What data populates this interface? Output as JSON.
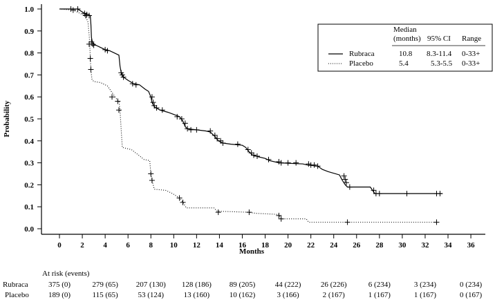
{
  "chart_data": {
    "type": "line",
    "title": "",
    "xlabel": "Months",
    "ylabel": "Probability",
    "xlim": [
      -1,
      37.5
    ],
    "ylim": [
      0,
      1.0
    ],
    "x_ticks": [
      0,
      2,
      4,
      6,
      8,
      10,
      12,
      14,
      16,
      18,
      20,
      22,
      24,
      26,
      28,
      30,
      32,
      34,
      36
    ],
    "y_ticks": [
      "0.0",
      "0.1",
      "0.2",
      "0.3",
      "0.4",
      "0.5",
      "0.6",
      "0.7",
      "0.8",
      "0.9",
      "1.0"
    ],
    "grid": false,
    "legend_position": "top-right",
    "legend": {
      "headers": [
        "Median (months)",
        "95% CI",
        "Range"
      ],
      "header_line1": [
        "Median",
        "",
        ""
      ],
      "header_line2": [
        "(months)",
        "95% CI",
        "Range"
      ],
      "rows": [
        {
          "name": "Rubraca",
          "style": "solid",
          "median": "10.8",
          "ci": "8.3-11.4",
          "range": "0-33+"
        },
        {
          "name": "Placebo",
          "style": "dotted",
          "median": "5.4",
          "ci": "5.3-5.5",
          "range": "0-33+"
        }
      ]
    },
    "series": [
      {
        "name": "Rubraca",
        "style": "solid",
        "steps": [
          [
            0,
            1.0
          ],
          [
            1.6,
            1.0
          ],
          [
            1.9,
            0.99
          ],
          [
            2.2,
            0.98
          ],
          [
            2.5,
            0.975
          ],
          [
            2.7,
            0.97
          ],
          [
            2.75,
            0.93
          ],
          [
            2.8,
            0.87
          ],
          [
            2.9,
            0.845
          ],
          [
            3.2,
            0.835
          ],
          [
            3.6,
            0.825
          ],
          [
            4.0,
            0.815
          ],
          [
            4.4,
            0.81
          ],
          [
            4.8,
            0.8
          ],
          [
            5.2,
            0.79
          ],
          [
            5.3,
            0.74
          ],
          [
            5.4,
            0.71
          ],
          [
            5.6,
            0.69
          ],
          [
            6.0,
            0.675
          ],
          [
            6.5,
            0.66
          ],
          [
            7.0,
            0.655
          ],
          [
            7.5,
            0.635
          ],
          [
            7.8,
            0.625
          ],
          [
            8.0,
            0.6
          ],
          [
            8.1,
            0.575
          ],
          [
            8.3,
            0.555
          ],
          [
            8.8,
            0.54
          ],
          [
            9.5,
            0.53
          ],
          [
            10.0,
            0.52
          ],
          [
            10.5,
            0.51
          ],
          [
            10.8,
            0.49
          ],
          [
            11.0,
            0.465
          ],
          [
            11.2,
            0.455
          ],
          [
            12.0,
            0.45
          ],
          [
            12.8,
            0.445
          ],
          [
            13.2,
            0.44
          ],
          [
            13.6,
            0.42
          ],
          [
            13.9,
            0.4
          ],
          [
            14.3,
            0.39
          ],
          [
            15.0,
            0.385
          ],
          [
            16.0,
            0.38
          ],
          [
            16.3,
            0.37
          ],
          [
            16.6,
            0.35
          ],
          [
            16.9,
            0.335
          ],
          [
            17.2,
            0.33
          ],
          [
            18.0,
            0.32
          ],
          [
            18.4,
            0.31
          ],
          [
            19.2,
            0.3
          ],
          [
            21.3,
            0.295
          ],
          [
            21.7,
            0.29
          ],
          [
            22.6,
            0.285
          ],
          [
            23.0,
            0.27
          ],
          [
            23.5,
            0.26
          ],
          [
            24.5,
            0.245
          ],
          [
            24.7,
            0.225
          ],
          [
            25.0,
            0.2
          ],
          [
            25.2,
            0.19
          ],
          [
            27.2,
            0.19
          ],
          [
            27.4,
            0.175
          ],
          [
            27.6,
            0.16
          ],
          [
            33.5,
            0.16
          ]
        ],
        "censor_times": [
          [
            1.0,
            1.0
          ],
          [
            1.6,
            1.0
          ],
          [
            2.2,
            0.98
          ],
          [
            2.4,
            0.975
          ],
          [
            2.6,
            0.97
          ],
          [
            2.8,
            0.85
          ],
          [
            2.9,
            0.84
          ],
          [
            3.0,
            0.835
          ],
          [
            4.0,
            0.815
          ],
          [
            4.2,
            0.81
          ],
          [
            5.4,
            0.71
          ],
          [
            5.5,
            0.7
          ],
          [
            5.6,
            0.69
          ],
          [
            6.4,
            0.66
          ],
          [
            6.7,
            0.655
          ],
          [
            8.1,
            0.6
          ],
          [
            8.2,
            0.575
          ],
          [
            8.3,
            0.56
          ],
          [
            8.5,
            0.55
          ],
          [
            9.0,
            0.54
          ],
          [
            10.3,
            0.51
          ],
          [
            10.7,
            0.5
          ],
          [
            11.0,
            0.48
          ],
          [
            11.2,
            0.455
          ],
          [
            11.5,
            0.45
          ],
          [
            12.0,
            0.45
          ],
          [
            13.2,
            0.445
          ],
          [
            13.6,
            0.425
          ],
          [
            13.8,
            0.41
          ],
          [
            14.1,
            0.4
          ],
          [
            14.3,
            0.39
          ],
          [
            15.6,
            0.385
          ],
          [
            16.5,
            0.36
          ],
          [
            16.8,
            0.345
          ],
          [
            17.0,
            0.335
          ],
          [
            17.3,
            0.33
          ],
          [
            18.3,
            0.315
          ],
          [
            19.2,
            0.305
          ],
          [
            19.4,
            0.3
          ],
          [
            20.0,
            0.3
          ],
          [
            20.7,
            0.3
          ],
          [
            21.8,
            0.295
          ],
          [
            22.0,
            0.29
          ],
          [
            22.3,
            0.29
          ],
          [
            22.6,
            0.285
          ],
          [
            24.9,
            0.24
          ],
          [
            25.0,
            0.225
          ],
          [
            25.1,
            0.21
          ],
          [
            25.4,
            0.19
          ],
          [
            27.5,
            0.175
          ],
          [
            27.7,
            0.16
          ],
          [
            28.0,
            0.16
          ],
          [
            30.4,
            0.16
          ],
          [
            33.0,
            0.16
          ],
          [
            33.3,
            0.16
          ]
        ]
      },
      {
        "name": "Placebo",
        "style": "dotted",
        "steps": [
          [
            0,
            1.0
          ],
          [
            1.2,
            0.995
          ],
          [
            1.6,
            0.985
          ],
          [
            2.0,
            0.975
          ],
          [
            2.3,
            0.965
          ],
          [
            2.5,
            0.94
          ],
          [
            2.6,
            0.88
          ],
          [
            2.65,
            0.84
          ],
          [
            2.7,
            0.78
          ],
          [
            2.75,
            0.72
          ],
          [
            2.85,
            0.68
          ],
          [
            3.0,
            0.67
          ],
          [
            3.6,
            0.665
          ],
          [
            4.2,
            0.65
          ],
          [
            4.6,
            0.62
          ],
          [
            5.0,
            0.59
          ],
          [
            5.2,
            0.58
          ],
          [
            5.3,
            0.54
          ],
          [
            5.4,
            0.45
          ],
          [
            5.5,
            0.37
          ],
          [
            6.3,
            0.36
          ],
          [
            6.8,
            0.34
          ],
          [
            7.4,
            0.315
          ],
          [
            7.9,
            0.31
          ],
          [
            8.0,
            0.25
          ],
          [
            8.1,
            0.22
          ],
          [
            8.3,
            0.18
          ],
          [
            9.3,
            0.175
          ],
          [
            9.9,
            0.16
          ],
          [
            10.5,
            0.14
          ],
          [
            10.8,
            0.12
          ],
          [
            11.1,
            0.095
          ],
          [
            13.5,
            0.095
          ],
          [
            13.8,
            0.08
          ],
          [
            16.5,
            0.075
          ],
          [
            17.2,
            0.07
          ],
          [
            19.2,
            0.065
          ],
          [
            19.4,
            0.045
          ],
          [
            21.6,
            0.045
          ],
          [
            21.8,
            0.03
          ],
          [
            33.0,
            0.03
          ]
        ],
        "censor_times": [
          [
            1.2,
            0.995
          ],
          [
            2.3,
            0.97
          ],
          [
            2.6,
            0.84
          ],
          [
            2.7,
            0.775
          ],
          [
            2.75,
            0.725
          ],
          [
            4.6,
            0.6
          ],
          [
            5.1,
            0.58
          ],
          [
            5.2,
            0.54
          ],
          [
            8.0,
            0.25
          ],
          [
            8.1,
            0.22
          ],
          [
            10.5,
            0.14
          ],
          [
            10.8,
            0.12
          ],
          [
            13.9,
            0.075
          ],
          [
            16.6,
            0.075
          ],
          [
            19.2,
            0.06
          ],
          [
            19.4,
            0.045
          ],
          [
            25.2,
            0.03
          ],
          [
            33.0,
            0.03
          ]
        ]
      }
    ]
  },
  "at_risk": {
    "title": "At risk (events)",
    "columns_months": [
      0,
      4,
      8,
      12,
      16,
      20,
      24,
      28,
      32,
      36
    ],
    "rows": [
      {
        "label": "Rubraca",
        "values": [
          "375 (0)",
          "279 (65)",
          "207 (130)",
          "128 (186)",
          "89 (205)",
          "44 (222)",
          "26 (226)",
          "6 (234)",
          "3 (234)",
          "0 (234)"
        ]
      },
      {
        "label": "Placebo",
        "values": [
          "189 (0)",
          "115 (65)",
          "53 (124)",
          "13 (160)",
          "10 (162)",
          "3 (166)",
          "2 (167)",
          "1 (167)",
          "1 (167)",
          "0 (167)"
        ]
      }
    ]
  }
}
